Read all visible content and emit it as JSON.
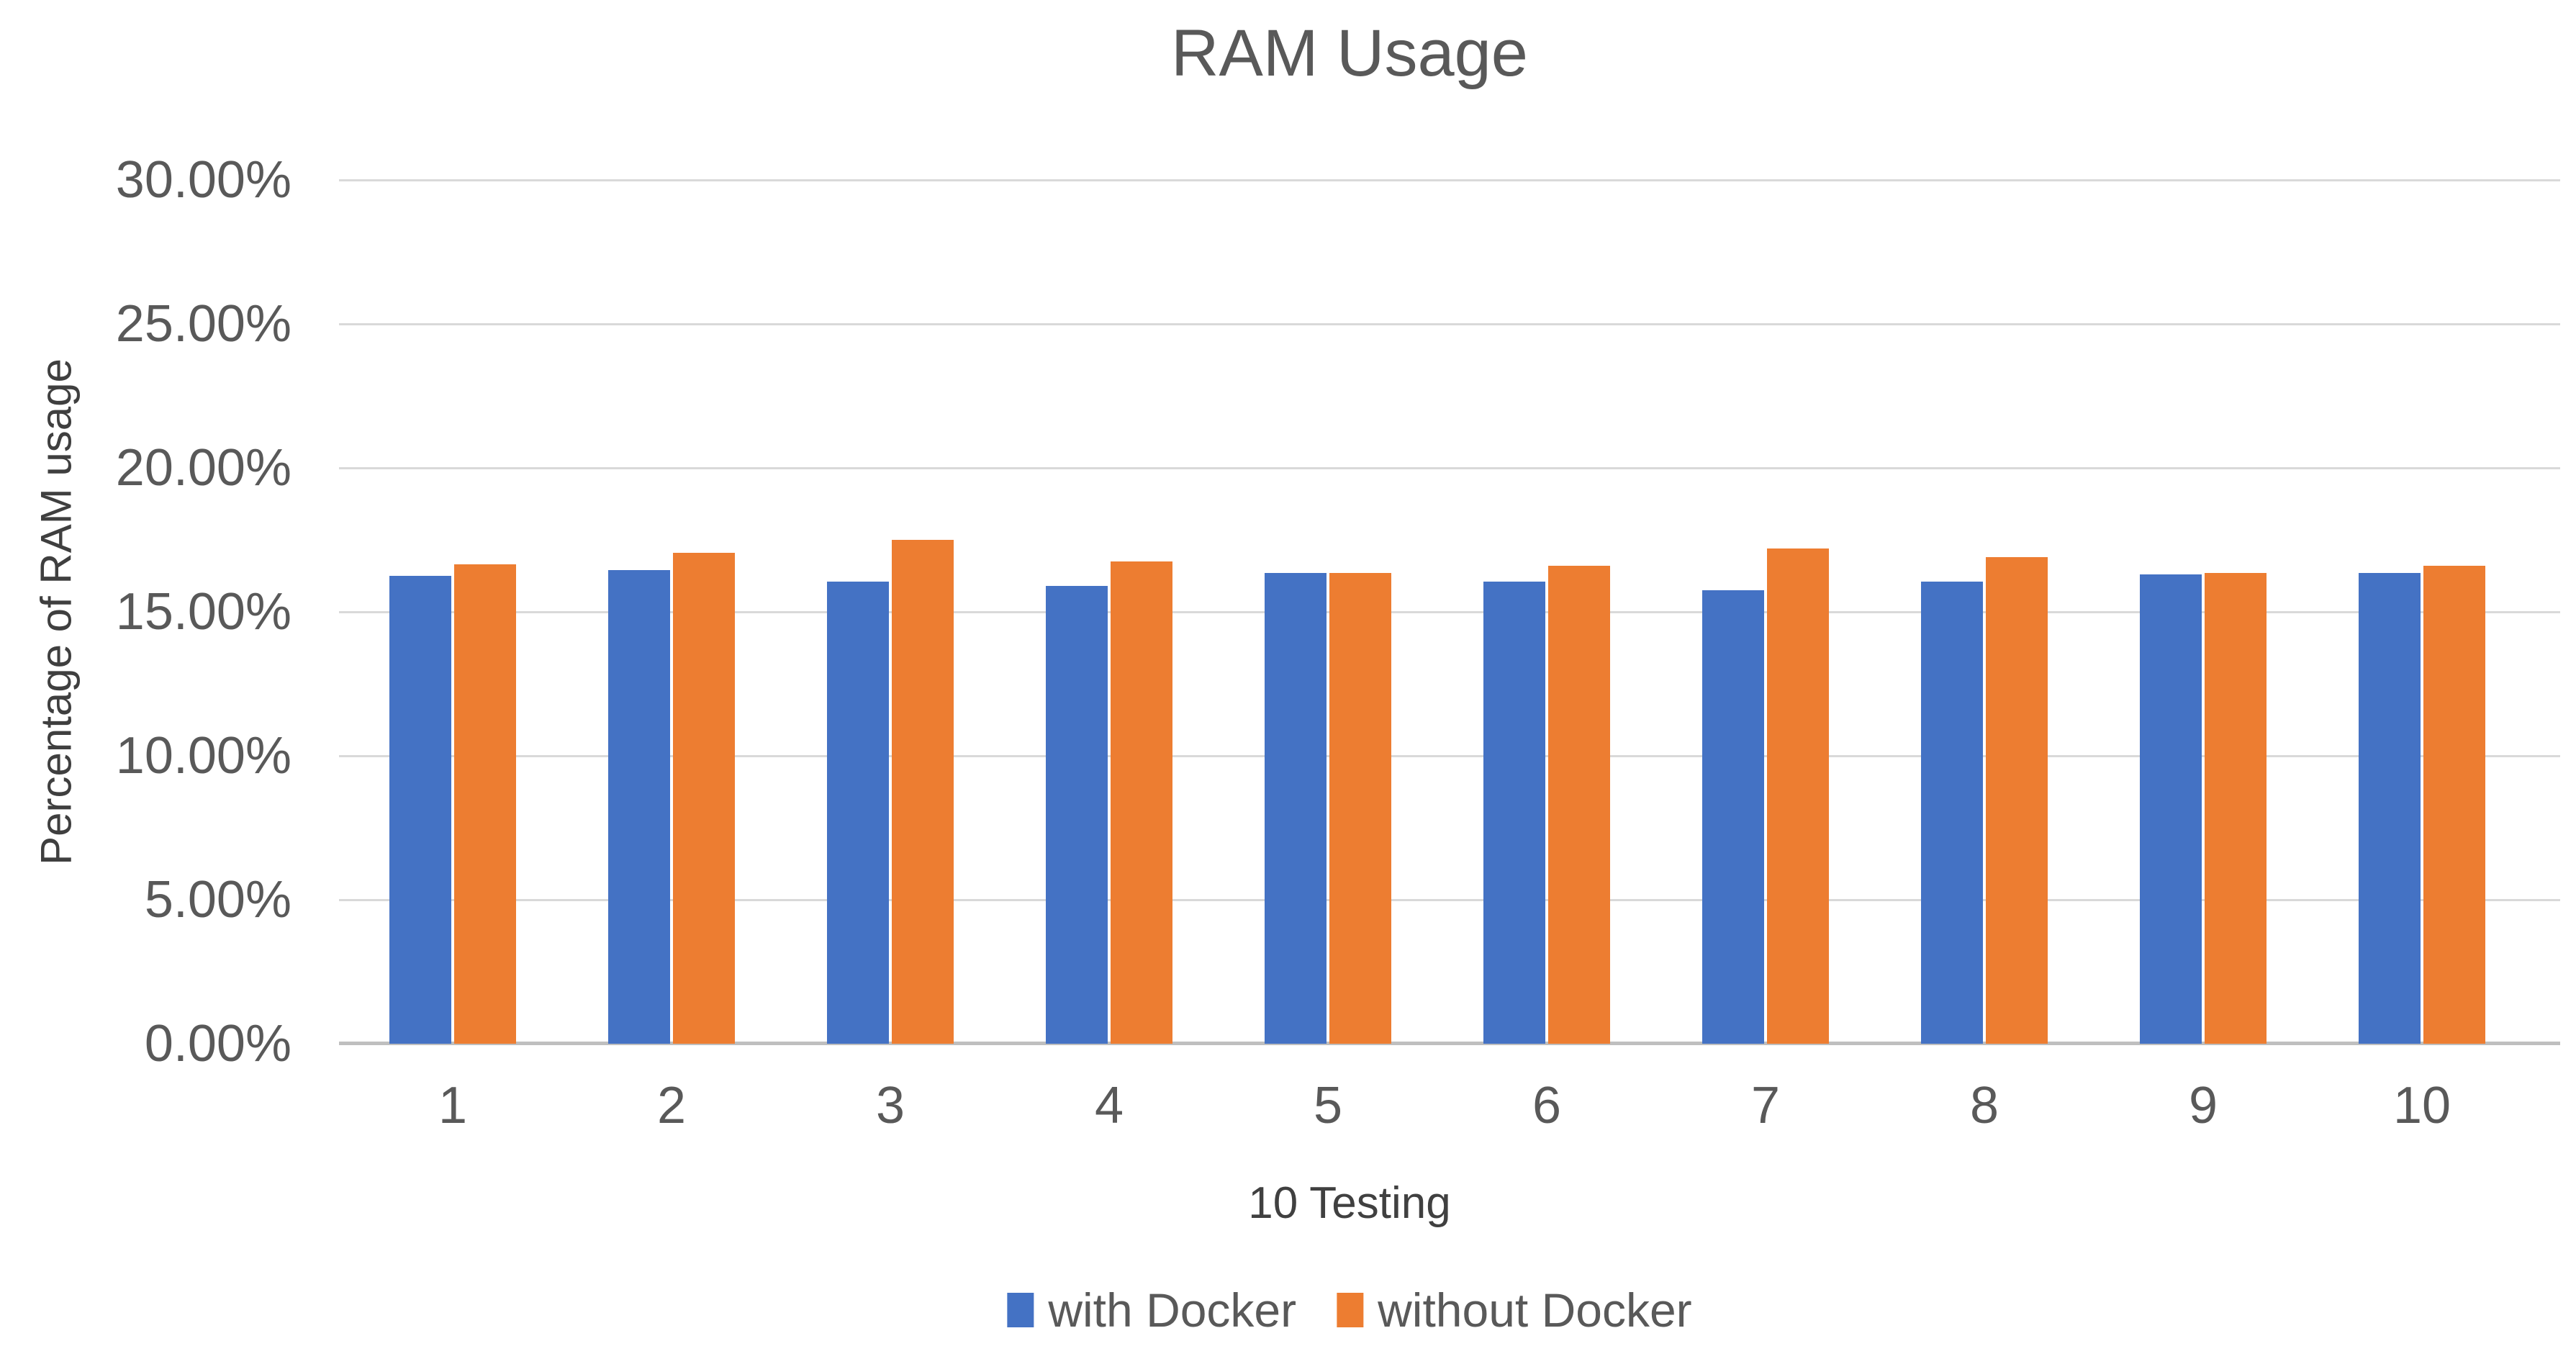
{
  "chart_data": {
    "type": "bar",
    "title": "RAM Usage",
    "xlabel": "10 Testing",
    "ylabel": "Percentage of RAM usage",
    "categories": [
      "1",
      "2",
      "3",
      "4",
      "5",
      "6",
      "7",
      "8",
      "9",
      "10"
    ],
    "series": [
      {
        "name": "with Docker",
        "color": "#4472C4",
        "values": [
          16.25,
          16.45,
          16.05,
          15.9,
          16.35,
          16.05,
          15.75,
          16.05,
          16.3,
          16.35
        ]
      },
      {
        "name": "without Docker",
        "color": "#ED7D31",
        "values": [
          16.65,
          17.05,
          17.5,
          16.75,
          16.35,
          16.6,
          17.2,
          16.9,
          16.35,
          16.6
        ]
      }
    ],
    "ylim": [
      0,
      30
    ],
    "ytick_step": 5,
    "ytick_labels": [
      "30.00%",
      "25.00%",
      "20.00%",
      "15.00%",
      "10.00%",
      "5.00%",
      "0.00%"
    ],
    "grid": true,
    "legend_position": "bottom",
    "colors": {
      "gridline": "#d9d9d9",
      "axis_line": "#bfbfbf",
      "title_text": "#595959",
      "tick_text": "#595959",
      "axis_title_text": "#404040"
    }
  }
}
